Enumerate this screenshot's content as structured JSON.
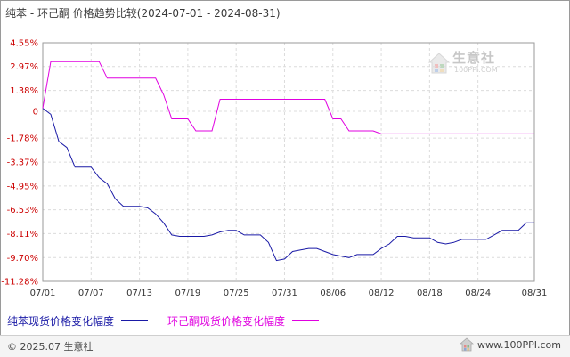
{
  "title": "纯苯 - 环己酮 价格趋势比较(2024-07-01 - 2024-08-31)",
  "chart_data": {
    "type": "line",
    "y_ticks": [
      "4.55%",
      "2.97%",
      "1.38%",
      "0",
      "-1.78%",
      "-3.37%",
      "-4.95%",
      "-6.53%",
      "-8.11%",
      "-9.70%",
      "-11.28%"
    ],
    "y_tick_values": [
      4.55,
      2.97,
      1.38,
      0,
      -1.78,
      -3.37,
      -4.95,
      -6.53,
      -8.11,
      -9.7,
      -11.28
    ],
    "ylim": [
      -11.28,
      4.55
    ],
    "x_ticks": [
      "07/01",
      "07/07",
      "07/13",
      "07/19",
      "07/25",
      "07/31",
      "08/06",
      "08/12",
      "08/18",
      "08/24",
      "08/31"
    ],
    "x_tick_days": [
      0,
      6,
      12,
      18,
      24,
      30,
      36,
      42,
      48,
      54,
      61
    ],
    "xlim": [
      0,
      61
    ],
    "grid": true,
    "legend_position": "bottom",
    "series": [
      {
        "name": "纯苯现货价格变化幅度",
        "color": "#1a1aa6",
        "points": [
          [
            0,
            0.2
          ],
          [
            1,
            -0.2
          ],
          [
            2,
            -2.0
          ],
          [
            3,
            -2.4
          ],
          [
            4,
            -3.7
          ],
          [
            5,
            -3.7
          ],
          [
            6,
            -3.7
          ],
          [
            7,
            -4.4
          ],
          [
            8,
            -4.8
          ],
          [
            9,
            -5.8
          ],
          [
            10,
            -6.3
          ],
          [
            11,
            -6.3
          ],
          [
            12,
            -6.3
          ],
          [
            13,
            -6.4
          ],
          [
            14,
            -6.8
          ],
          [
            15,
            -7.4
          ],
          [
            16,
            -8.2
          ],
          [
            17,
            -8.3
          ],
          [
            18,
            -8.3
          ],
          [
            19,
            -8.3
          ],
          [
            20,
            -8.3
          ],
          [
            21,
            -8.2
          ],
          [
            22,
            -8.0
          ],
          [
            23,
            -7.9
          ],
          [
            24,
            -7.9
          ],
          [
            25,
            -8.2
          ],
          [
            26,
            -8.2
          ],
          [
            27,
            -8.2
          ],
          [
            28,
            -8.7
          ],
          [
            29,
            -9.9
          ],
          [
            30,
            -9.8
          ],
          [
            31,
            -9.3
          ],
          [
            32,
            -9.2
          ],
          [
            33,
            -9.1
          ],
          [
            34,
            -9.1
          ],
          [
            35,
            -9.3
          ],
          [
            36,
            -9.5
          ],
          [
            37,
            -9.6
          ],
          [
            38,
            -9.7
          ],
          [
            39,
            -9.5
          ],
          [
            40,
            -9.5
          ],
          [
            41,
            -9.5
          ],
          [
            42,
            -9.1
          ],
          [
            43,
            -8.8
          ],
          [
            44,
            -8.3
          ],
          [
            45,
            -8.3
          ],
          [
            46,
            -8.4
          ],
          [
            47,
            -8.4
          ],
          [
            48,
            -8.4
          ],
          [
            49,
            -8.7
          ],
          [
            50,
            -8.8
          ],
          [
            51,
            -8.7
          ],
          [
            52,
            -8.5
          ],
          [
            53,
            -8.5
          ],
          [
            54,
            -8.5
          ],
          [
            55,
            -8.5
          ],
          [
            56,
            -8.2
          ],
          [
            57,
            -7.9
          ],
          [
            58,
            -7.9
          ],
          [
            59,
            -7.9
          ],
          [
            60,
            -7.4
          ],
          [
            61,
            -7.4
          ]
        ]
      },
      {
        "name": "环己酮现货价格变化幅度",
        "color": "#e000e0",
        "points": [
          [
            0,
            0.2
          ],
          [
            1,
            3.3
          ],
          [
            2,
            3.3
          ],
          [
            3,
            3.3
          ],
          [
            4,
            3.3
          ],
          [
            5,
            3.3
          ],
          [
            6,
            3.3
          ],
          [
            7,
            3.3
          ],
          [
            8,
            2.2
          ],
          [
            9,
            2.2
          ],
          [
            10,
            2.2
          ],
          [
            11,
            2.2
          ],
          [
            12,
            2.2
          ],
          [
            13,
            2.2
          ],
          [
            14,
            2.2
          ],
          [
            15,
            1.1
          ],
          [
            16,
            -0.5
          ],
          [
            17,
            -0.5
          ],
          [
            18,
            -0.5
          ],
          [
            19,
            -1.3
          ],
          [
            20,
            -1.3
          ],
          [
            21,
            -1.3
          ],
          [
            22,
            0.8
          ],
          [
            23,
            0.8
          ],
          [
            24,
            0.8
          ],
          [
            25,
            0.8
          ],
          [
            26,
            0.8
          ],
          [
            27,
            0.8
          ],
          [
            28,
            0.8
          ],
          [
            29,
            0.8
          ],
          [
            30,
            0.8
          ],
          [
            31,
            0.8
          ],
          [
            32,
            0.8
          ],
          [
            33,
            0.8
          ],
          [
            34,
            0.8
          ],
          [
            35,
            0.8
          ],
          [
            36,
            -0.5
          ],
          [
            37,
            -0.5
          ],
          [
            38,
            -1.3
          ],
          [
            39,
            -1.3
          ],
          [
            40,
            -1.3
          ],
          [
            41,
            -1.3
          ],
          [
            42,
            -1.5
          ],
          [
            43,
            -1.5
          ],
          [
            44,
            -1.5
          ],
          [
            45,
            -1.5
          ],
          [
            46,
            -1.5
          ],
          [
            47,
            -1.5
          ],
          [
            48,
            -1.5
          ],
          [
            49,
            -1.5
          ],
          [
            50,
            -1.5
          ],
          [
            51,
            -1.5
          ],
          [
            52,
            -1.5
          ],
          [
            53,
            -1.5
          ],
          [
            54,
            -1.5
          ],
          [
            55,
            -1.5
          ],
          [
            56,
            -1.5
          ],
          [
            57,
            -1.5
          ],
          [
            58,
            -1.5
          ],
          [
            59,
            -1.5
          ],
          [
            60,
            -1.5
          ],
          [
            61,
            -1.5
          ]
        ]
      }
    ]
  },
  "watermark": {
    "text": "生意社",
    "sub": "100PPI.COM"
  },
  "footer": {
    "copyright": "© 2025.07 生意社",
    "site": "www.100PPI.com"
  }
}
